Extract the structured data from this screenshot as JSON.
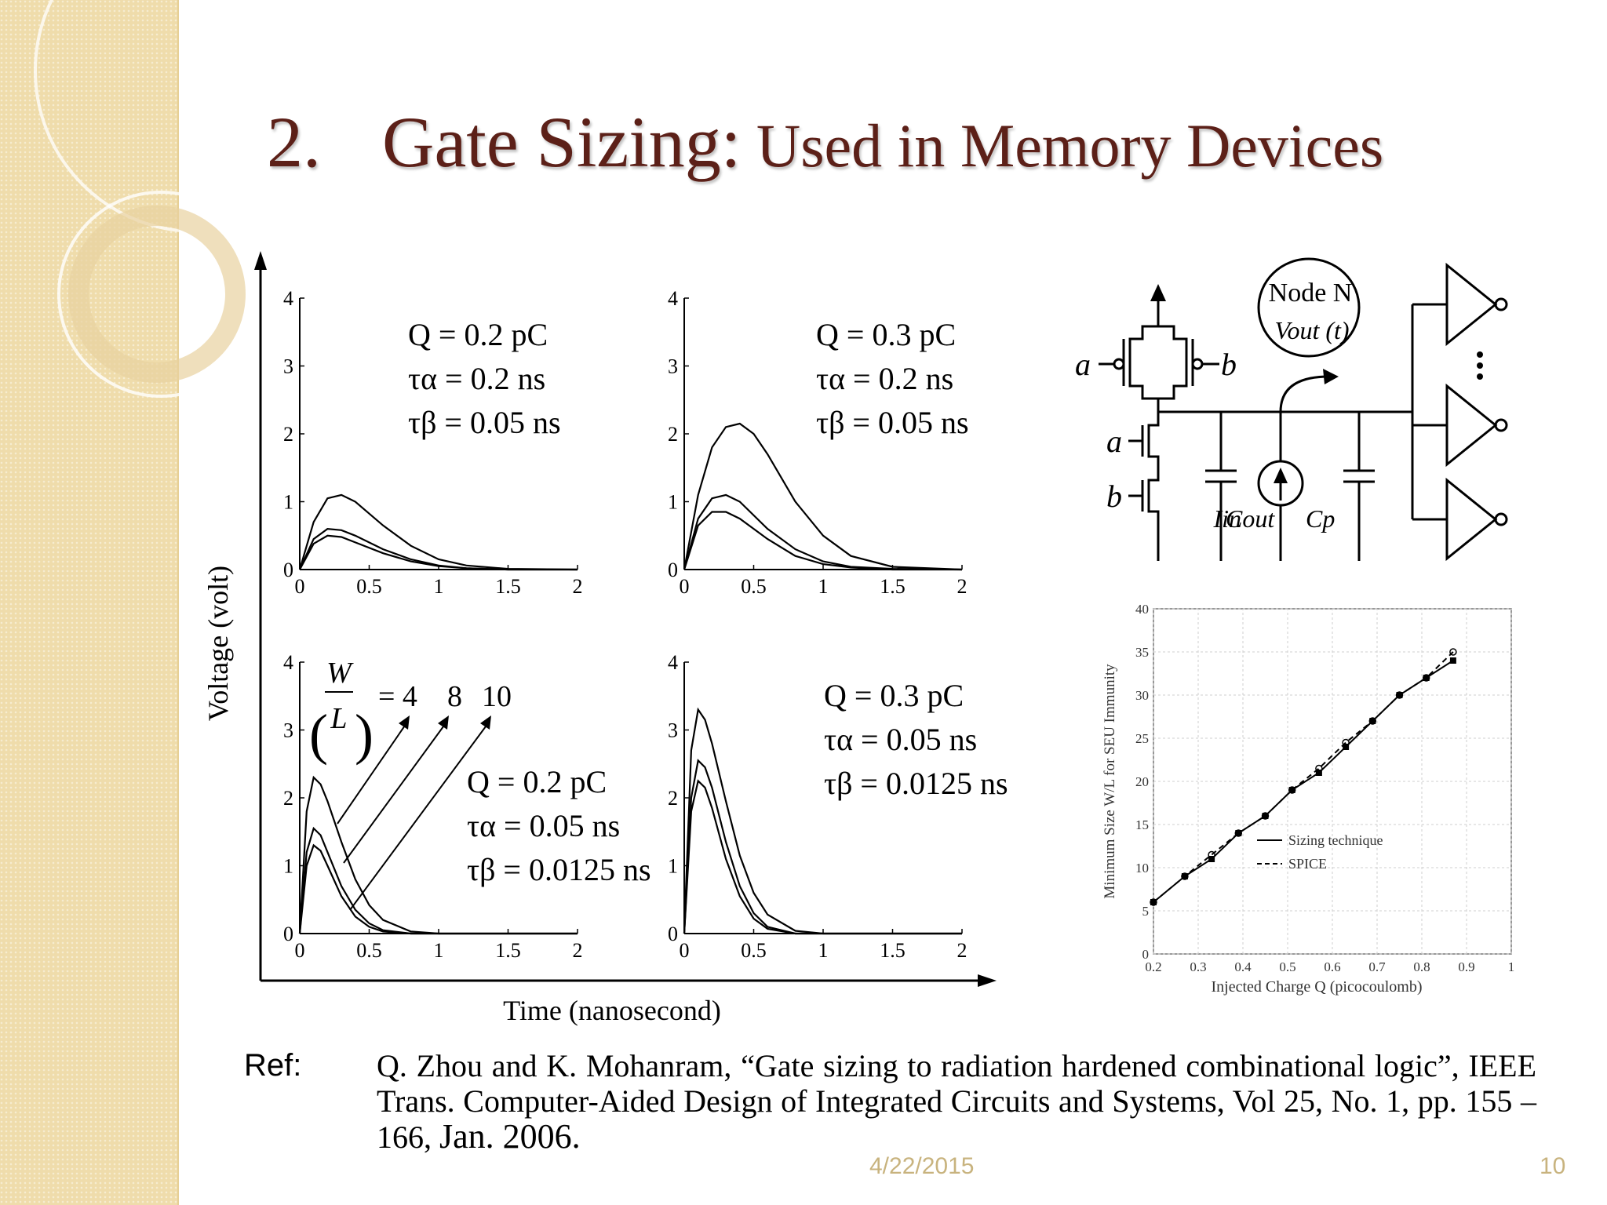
{
  "slide": {
    "title_number": "2.",
    "title_main": "Gate Sizing:",
    "title_sub": " Used in Memory Devices",
    "date": "4/22/2015",
    "page_number": "10",
    "accent_color": "#5c2018",
    "sidebar_color": "#efdcab"
  },
  "figure_left": {
    "ylabel": "Voltage (volt)",
    "xlabel": "Time (nanosecond)",
    "x_ticks": [
      "0",
      "0.5",
      "1",
      "1.5",
      "2"
    ],
    "y_ticks": [
      "0",
      "1",
      "2",
      "3",
      "4"
    ],
    "panels": [
      {
        "q": "Q = 0.2 pC",
        "ta": "τα = 0.2 ns",
        "tb": "τβ = 0.05 ns"
      },
      {
        "q": "Q = 0.3 pC",
        "ta": "τα = 0.2 ns",
        "tb": "τβ = 0.05 ns"
      },
      {
        "q": "Q = 0.2 pC",
        "ta": "τα = 0.05 ns",
        "tb": "τβ = 0.0125 ns"
      },
      {
        "q": "Q = 0.3 pC",
        "ta": "τα = 0.05 ns",
        "tb": "τβ = 0.0125 ns"
      }
    ],
    "wl_label_top": "W",
    "wl_label_bottom": "L",
    "wl_values": [
      "= 4",
      "8",
      "10"
    ]
  },
  "circuit": {
    "node_label": "Node N",
    "vout_label": "Vout (t)",
    "a_label": "a",
    "b_label": "b",
    "cout_label": "Cout",
    "iin_label": "Iin",
    "cp_label": "Cp"
  },
  "chart_data": [
    {
      "type": "line",
      "title": "",
      "xlabel": "Time (nanosecond)",
      "ylabel": "Voltage (volt)",
      "xlim": [
        0,
        2
      ],
      "ylim": [
        0,
        4
      ],
      "panel": "Q = 0.2 pC, τα = 0.2 ns, τβ = 0.05 ns",
      "series": [
        {
          "x": [
            0,
            0.1,
            0.2,
            0.3,
            0.4,
            0.6,
            0.8,
            1.0,
            1.2,
            1.5,
            2.0
          ],
          "values": [
            0,
            0.7,
            1.05,
            1.1,
            1.0,
            0.65,
            0.35,
            0.15,
            0.06,
            0.01,
            0
          ]
        },
        {
          "x": [
            0,
            0.1,
            0.2,
            0.3,
            0.4,
            0.6,
            0.8,
            1.0,
            1.2,
            1.5,
            2.0
          ],
          "values": [
            0,
            0.45,
            0.6,
            0.58,
            0.5,
            0.3,
            0.15,
            0.06,
            0.02,
            0,
            0
          ]
        },
        {
          "x": [
            0,
            0.1,
            0.2,
            0.3,
            0.4,
            0.6,
            0.8,
            1.0,
            1.2,
            1.5,
            2.0
          ],
          "values": [
            0,
            0.38,
            0.5,
            0.48,
            0.4,
            0.24,
            0.12,
            0.05,
            0.02,
            0,
            0
          ]
        }
      ]
    },
    {
      "type": "line",
      "title": "",
      "xlabel": "Time (nanosecond)",
      "ylabel": "Voltage (volt)",
      "xlim": [
        0,
        2
      ],
      "ylim": [
        0,
        4
      ],
      "panel": "Q = 0.3 pC, τα = 0.2 ns, τβ = 0.05 ns",
      "series": [
        {
          "x": [
            0,
            0.1,
            0.2,
            0.3,
            0.4,
            0.5,
            0.6,
            0.8,
            1.0,
            1.2,
            1.5,
            2.0
          ],
          "values": [
            0,
            1.1,
            1.8,
            2.1,
            2.15,
            2.0,
            1.7,
            1.0,
            0.5,
            0.2,
            0.04,
            0
          ]
        },
        {
          "x": [
            0,
            0.1,
            0.2,
            0.3,
            0.4,
            0.6,
            0.8,
            1.0,
            1.2,
            1.5,
            2.0
          ],
          "values": [
            0,
            0.75,
            1.05,
            1.1,
            1.0,
            0.6,
            0.3,
            0.12,
            0.04,
            0.01,
            0
          ]
        },
        {
          "x": [
            0,
            0.1,
            0.2,
            0.3,
            0.4,
            0.6,
            0.8,
            1.0,
            1.2,
            1.5,
            2.0
          ],
          "values": [
            0,
            0.65,
            0.85,
            0.85,
            0.75,
            0.45,
            0.2,
            0.08,
            0.03,
            0,
            0
          ]
        }
      ]
    },
    {
      "type": "line",
      "title": "",
      "xlabel": "Time (nanosecond)",
      "ylabel": "Voltage (volt)",
      "xlim": [
        0,
        2
      ],
      "ylim": [
        0,
        4
      ],
      "panel": "Q = 0.2 pC, τα = 0.05 ns, τβ = 0.0125 ns",
      "series": [
        {
          "x": [
            0,
            0.05,
            0.1,
            0.15,
            0.2,
            0.3,
            0.4,
            0.5,
            0.6,
            0.8,
            1.0,
            1.5,
            2.0
          ],
          "values": [
            0,
            1.8,
            2.3,
            2.2,
            1.95,
            1.35,
            0.8,
            0.42,
            0.2,
            0.03,
            0,
            0,
            0
          ]
        },
        {
          "x": [
            0,
            0.05,
            0.1,
            0.15,
            0.2,
            0.3,
            0.4,
            0.5,
            0.6,
            0.8,
            1.0,
            1.5,
            2.0
          ],
          "values": [
            0,
            1.2,
            1.55,
            1.45,
            1.2,
            0.7,
            0.35,
            0.15,
            0.05,
            0,
            0,
            0,
            0
          ]
        },
        {
          "x": [
            0,
            0.05,
            0.1,
            0.15,
            0.2,
            0.3,
            0.4,
            0.5,
            0.6,
            0.8,
            1.0,
            1.5,
            2.0
          ],
          "values": [
            0,
            1.0,
            1.3,
            1.22,
            1.0,
            0.55,
            0.25,
            0.1,
            0.03,
            0,
            0,
            0,
            0
          ]
        }
      ]
    },
    {
      "type": "line",
      "title": "",
      "xlabel": "Time (nanosecond)",
      "ylabel": "Voltage (volt)",
      "xlim": [
        0,
        2
      ],
      "ylim": [
        0,
        4
      ],
      "panel": "Q = 0.3 pC, τα = 0.05 ns, τβ = 0.0125 ns",
      "series": [
        {
          "x": [
            0,
            0.05,
            0.1,
            0.15,
            0.2,
            0.3,
            0.4,
            0.5,
            0.6,
            0.8,
            1.0,
            1.5,
            2.0
          ],
          "values": [
            0,
            2.7,
            3.3,
            3.15,
            2.8,
            1.95,
            1.15,
            0.6,
            0.28,
            0.04,
            0,
            0,
            0
          ]
        },
        {
          "x": [
            0,
            0.05,
            0.1,
            0.15,
            0.2,
            0.3,
            0.4,
            0.5,
            0.6,
            0.8,
            1.0,
            1.5,
            2.0
          ],
          "values": [
            0,
            2.0,
            2.55,
            2.45,
            2.15,
            1.35,
            0.7,
            0.3,
            0.1,
            0,
            0,
            0,
            0
          ]
        },
        {
          "x": [
            0,
            0.05,
            0.1,
            0.15,
            0.2,
            0.3,
            0.4,
            0.5,
            0.6,
            0.8,
            1.0,
            1.5,
            2.0
          ],
          "values": [
            0,
            1.8,
            2.25,
            2.15,
            1.85,
            1.1,
            0.55,
            0.22,
            0.07,
            0,
            0,
            0,
            0
          ]
        }
      ]
    },
    {
      "type": "line",
      "title": "",
      "xlabel": "Injected Charge Q (picocoulomb)",
      "ylabel": "Minimum Size W/L for SEU Immunity",
      "xlim": [
        0.2,
        1
      ],
      "ylim": [
        0,
        40
      ],
      "x_ticks": [
        "0.2",
        "0.3",
        "0.4",
        "0.5",
        "0.6",
        "0.7",
        "0.8",
        "0.9",
        "1"
      ],
      "y_ticks": [
        "0",
        "5",
        "10",
        "15",
        "20",
        "25",
        "30",
        "35",
        "40"
      ],
      "grid": true,
      "legend": "center-right",
      "series": [
        {
          "name": "Sizing technique",
          "x": [
            0.2,
            0.27,
            0.33,
            0.39,
            0.45,
            0.51,
            0.57,
            0.63,
            0.69,
            0.75,
            0.81,
            0.87
          ],
          "values": [
            6,
            9,
            11,
            14,
            16,
            19,
            21,
            24,
            27,
            30,
            32,
            34
          ]
        },
        {
          "name": "SPICE",
          "x": [
            0.2,
            0.27,
            0.33,
            0.39,
            0.45,
            0.51,
            0.57,
            0.63,
            0.69,
            0.75,
            0.81,
            0.87
          ],
          "values": [
            6,
            9,
            11.5,
            14,
            16,
            19,
            21.5,
            24.5,
            27,
            30,
            32,
            35
          ]
        }
      ]
    }
  ],
  "reference": {
    "label": "Ref:",
    "text": "Q. Zhou and K. Mohanram, “Gate sizing to radiation hardened combinational logic”, IEEE Trans. Computer-Aided Design of Integrated Circuits and Systems, Vol 25, No. 1, pp. 155 – 166, ",
    "date": "Jan. 2006."
  }
}
